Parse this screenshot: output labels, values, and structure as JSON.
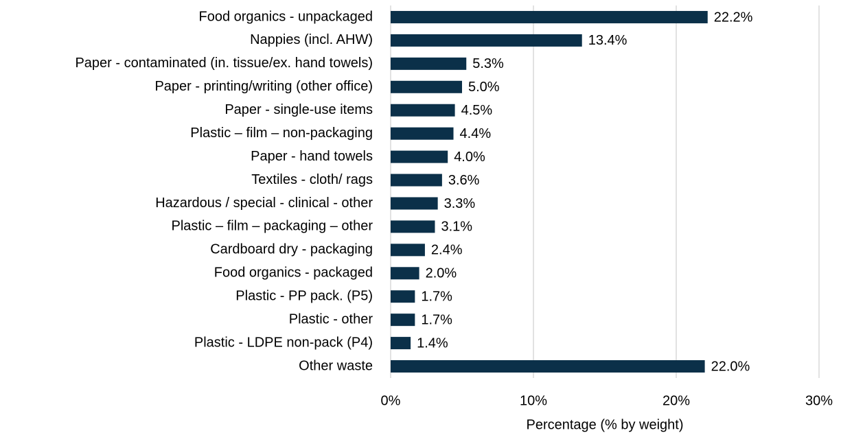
{
  "chart_data": {
    "type": "bar",
    "orientation": "horizontal",
    "categories": [
      "Food organics - unpackaged",
      "Nappies (incl. AHW)",
      "Paper - contaminated (in. tissue/ex. hand towels)",
      "Paper - printing/writing (other office)",
      "Paper - single-use items",
      "Plastic – film – non-packaging",
      "Paper - hand towels",
      "Textiles - cloth/ rags",
      "Hazardous / special - clinical - other",
      "Plastic – film – packaging – other",
      "Cardboard dry - packaging",
      "Food organics - packaged",
      "Plastic - PP pack. (P5)",
      "Plastic - other",
      "Plastic - LDPE non-pack (P4)",
      "Other waste"
    ],
    "values": [
      22.2,
      13.4,
      5.3,
      5.0,
      4.5,
      4.4,
      4.0,
      3.6,
      3.3,
      3.1,
      2.4,
      2.0,
      1.7,
      1.7,
      1.4,
      22.0
    ],
    "value_labels": [
      "22.2%",
      "13.4%",
      "5.3%",
      "5.0%",
      "4.5%",
      "4.4%",
      "4.0%",
      "3.6%",
      "3.3%",
      "3.1%",
      "2.4%",
      "2.0%",
      "1.7%",
      "1.7%",
      "1.4%",
      "22.0%"
    ],
    "color": "#0b3049",
    "xlabel": "Percentage (% by weight)",
    "xlim": [
      0,
      30
    ],
    "xticks": [
      {
        "value": 0,
        "label": "0%"
      },
      {
        "value": 10,
        "label": "10%"
      },
      {
        "value": 20,
        "label": "20%"
      },
      {
        "value": 30,
        "label": "30%"
      }
    ],
    "grid": true
  }
}
